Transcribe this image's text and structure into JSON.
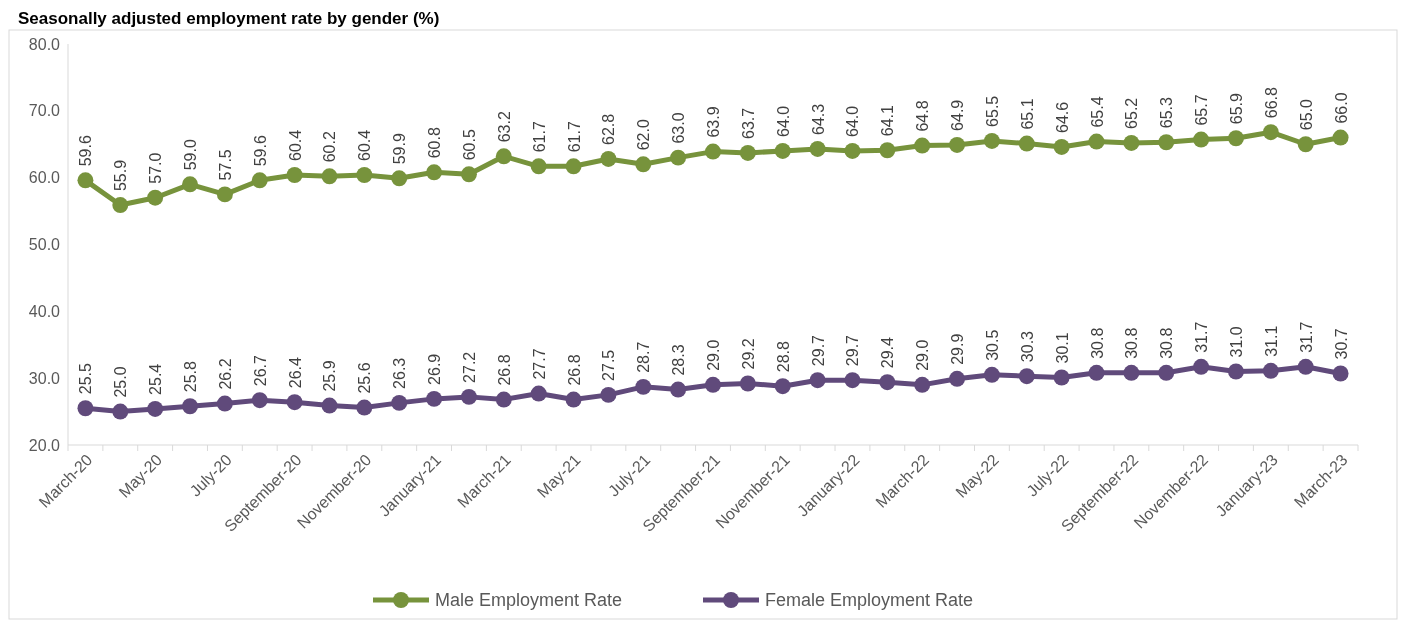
{
  "chart_data": {
    "type": "line",
    "title": "Seasonally adjusted employment rate by gender (%)",
    "categories": [
      "March-20",
      null,
      "May-20",
      null,
      "July-20",
      null,
      "September-20",
      null,
      "November-20",
      null,
      "January-21",
      null,
      "March-21",
      null,
      "May-21",
      null,
      "July-21",
      null,
      "September-21",
      null,
      "November-21",
      null,
      "January-22",
      null,
      "March-22",
      null,
      "May-22",
      null,
      "July-22",
      null,
      "September-22",
      null,
      "November-22",
      null,
      "January-23",
      null,
      "March-23"
    ],
    "series": [
      {
        "name": "Male Employment Rate",
        "color": "#77933c",
        "values": [
          59.6,
          55.9,
          57.0,
          59.0,
          57.5,
          59.6,
          60.4,
          60.2,
          60.4,
          59.9,
          60.8,
          60.5,
          63.2,
          61.7,
          61.7,
          62.8,
          62.0,
          63.0,
          63.9,
          63.7,
          64.0,
          64.3,
          64.0,
          64.1,
          64.8,
          64.9,
          65.5,
          65.1,
          64.6,
          65.4,
          65.2,
          65.3,
          65.7,
          65.9,
          66.8,
          65.0,
          66.0
        ],
        "value_labels": [
          "59.6",
          "55.9",
          "57.0",
          "59.0",
          "57.5",
          "59.6",
          "60.4",
          "60.2",
          "60.4",
          "59.9",
          "60.8",
          "60.5",
          "63.2",
          "61.7",
          "61.7",
          "62.8",
          "62.0",
          "63.0",
          "63.9",
          "63.7",
          "64.0",
          "64.3",
          "64.0",
          "64.1",
          "64.8",
          "64.9",
          "65.5",
          "65.1",
          "64.6",
          "65.4",
          "65.2",
          "65.3",
          "65.7",
          "65.9",
          "66.8",
          "65.0",
          "66.0"
        ]
      },
      {
        "name": "Female Employment Rate",
        "color": "#604a7b",
        "values": [
          25.5,
          25.0,
          25.4,
          25.8,
          26.2,
          26.7,
          26.4,
          25.9,
          25.6,
          26.3,
          26.9,
          27.2,
          26.8,
          27.7,
          26.8,
          27.5,
          28.7,
          28.3,
          29.0,
          29.2,
          28.8,
          29.7,
          29.7,
          29.4,
          29.0,
          29.9,
          30.5,
          30.3,
          30.1,
          30.8,
          30.8,
          30.8,
          31.7,
          31.0,
          31.1,
          31.7,
          30.7
        ],
        "value_labels": [
          "25.5",
          "25.0",
          "25.4",
          "25.8",
          "26.2",
          "26.7",
          "26.4",
          "25.9",
          "25.6",
          "26.3",
          "26.9",
          "27.2",
          "26.8",
          "27.7",
          "26.8",
          "27.5",
          "28.7",
          "28.3",
          "29.0",
          "29.2",
          "28.8",
          "29.7",
          "29.7",
          "29.4",
          "29.0",
          "29.9",
          "30.5",
          "30.3",
          "30.1",
          "30.8",
          "30.8",
          "30.8",
          "31.7",
          "31.0",
          "31.1",
          "31.7",
          "30.7"
        ]
      }
    ],
    "ylim": [
      20,
      80
    ],
    "yticks": [
      {
        "value": 20,
        "label": "20.0"
      },
      {
        "value": 30,
        "label": "30.0"
      },
      {
        "value": 40,
        "label": "40.0"
      },
      {
        "value": 50,
        "label": "50.0"
      },
      {
        "value": 60,
        "label": "60.0"
      },
      {
        "value": 70,
        "label": "70.0"
      },
      {
        "value": 80,
        "label": "80.0"
      }
    ],
    "legend": "bottom",
    "marker": "circle",
    "line_style": "solid"
  }
}
